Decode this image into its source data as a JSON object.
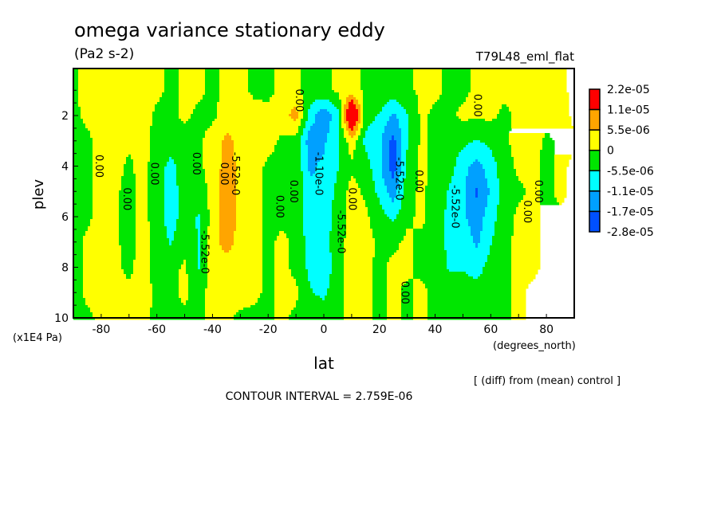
{
  "chart_data": {
    "type": "heatmap",
    "subtype": "filled-contour",
    "title": "omega variance stationary eddy",
    "units": "(Pa2 s-2)",
    "experiment": "T79L48_eml_flat",
    "xlabel": "lat",
    "xunits": "(degrees_north)",
    "ylabel": "plev",
    "yunits": "(x1E4 Pa)",
    "note": "[ (diff) from (mean) control ]",
    "contour_interval": "CONTOUR INTERVAL = 2.759E-06",
    "xlim": [
      -90,
      90
    ],
    "ylim": [
      0.14,
      10
    ],
    "y_inverted": true,
    "x_ticks": [
      -80,
      -60,
      -40,
      -20,
      0,
      20,
      40,
      60,
      80
    ],
    "x_tick_labels": [
      "-80",
      "-60",
      "-40",
      "-20",
      "0",
      "20",
      "40",
      "60",
      "80"
    ],
    "y_ticks": [
      2,
      4,
      6,
      8,
      10
    ],
    "y_tick_labels": [
      "2",
      "4",
      "6",
      "8",
      "10"
    ],
    "legend": {
      "placement": "right",
      "labels": [
        "2.2e-05",
        "1.1e-05",
        "5.5e-06",
        "0",
        "-5.5e-06",
        "-1.1e-05",
        "-1.7e-05",
        "-2.8e-05"
      ],
      "colors": [
        "#ff0000",
        "#ffa500",
        "#ffff00",
        "#00e600",
        "#00ffff",
        "#00a0ff",
        "#0050ff"
      ],
      "thresholds": [
        1.1e-05,
        5.5e-06,
        0,
        -5.5e-06,
        -1.1e-05,
        -1.7e-05
      ]
    },
    "lat": [
      -90,
      -85,
      -80,
      -75,
      -70,
      -65,
      -60,
      -55,
      -50,
      -45,
      -40,
      -35,
      -30,
      -25,
      -20,
      -15,
      -10,
      -5,
      0,
      5,
      10,
      15,
      20,
      25,
      30,
      35,
      40,
      45,
      50,
      55,
      60,
      65,
      70,
      75,
      80,
      85,
      90
    ],
    "plev": [
      1,
      2,
      3,
      4,
      5,
      6,
      7,
      8,
      9,
      10
    ],
    "values": [
      [
        -1e-06,
        2e-06,
        2e-06,
        2e-06,
        2e-06,
        2e-06,
        1e-06,
        -1e-06,
        1e-06,
        1e-06,
        -1e-06,
        1e-06,
        1e-06,
        -1e-06,
        -1e-06,
        1e-06,
        1e-06,
        -2e-06,
        -1e-06,
        1e-06,
        2e-06,
        -1e-06,
        -1e-06,
        -2e-06,
        -1e-06,
        1e-06,
        1e-06,
        -1e-06,
        -1e-06,
        1e-06,
        1e-06,
        1e-06,
        1e-06,
        2e-06,
        2e-06,
        1e-06,
        -1e-06
      ],
      [
        -1e-06,
        1e-06,
        2e-06,
        2e-06,
        2e-06,
        2e-06,
        -1e-06,
        -1e-06,
        1e-06,
        -1e-06,
        -1e-06,
        2e-06,
        3e-06,
        2e-06,
        1e-06,
        3e-06,
        8e-06,
        -8e-06,
        -1.5e-05,
        -8e-06,
        2.5e-05,
        -3e-06,
        -6e-06,
        -1.2e-05,
        -6e-06,
        1e-06,
        -1e-06,
        -1e-06,
        1e-06,
        1e-06,
        1e-06,
        -1e-06,
        1e-06,
        2e-06,
        2e-06,
        2e-06,
        -1e-06
      ],
      [
        -2e-06,
        -1e-06,
        2e-06,
        2e-06,
        1e-06,
        2e-06,
        -2e-06,
        -3e-06,
        -2e-06,
        -1e-06,
        2e-06,
        7e-06,
        4e-06,
        3e-06,
        2e-06,
        -1e-06,
        -2e-06,
        -1.4e-05,
        -1.2e-05,
        -6e-06,
        3e-06,
        -7e-06,
        -1e-05,
        -1.9e-05,
        -6e-06,
        1e-06,
        -1e-06,
        -2e-06,
        -4e-06,
        -6e-06,
        -4e-06,
        -1e-06,
        2e-06,
        2e-06,
        -1e-06,
        1e-06,
        1e-06
      ],
      [
        -2e-06,
        -1e-06,
        2e-06,
        2e-06,
        -1e-06,
        2e-06,
        -3e-06,
        -7e-06,
        -3e-06,
        -1e-06,
        2e-06,
        8e-06,
        4e-06,
        2e-06,
        -1e-06,
        -2e-06,
        -1e-06,
        -1.2e-05,
        -1e-05,
        -6e-06,
        -1e-06,
        -3e-06,
        -1e-05,
        -2e-05,
        -4e-06,
        1e-06,
        -1e-06,
        -3e-06,
        -9e-06,
        -1.3e-05,
        -8e-06,
        -2e-06,
        1e-06,
        1e-06,
        -1e-06,
        1e-06,
        -1e-06
      ],
      [
        -2e-06,
        -1e-06,
        2e-06,
        1e-06,
        -2e-06,
        2e-06,
        -3e-06,
        -8e-06,
        -3e-06,
        -3e-06,
        2e-06,
        9e-06,
        4e-06,
        2e-06,
        -1e-06,
        -2e-06,
        -1e-06,
        -1e-05,
        -9e-06,
        -4e-06,
        2e-06,
        -1e-06,
        -7e-06,
        -1.4e-05,
        -2e-06,
        1e-06,
        -2e-06,
        -6e-06,
        -1e-05,
        -1.8e-05,
        -1e-05,
        -3e-06,
        -1e-06,
        1e-06,
        -1e-06,
        1e-06,
        -1e-06
      ],
      [
        -2e-06,
        -1e-06,
        2e-06,
        1e-06,
        -2e-06,
        2e-06,
        -3e-06,
        -8e-06,
        -3e-06,
        -6e-06,
        2e-06,
        1e-05,
        4e-06,
        2e-06,
        -1e-06,
        -1e-06,
        -1e-06,
        -1e-05,
        -9e-06,
        -3e-06,
        2e-06,
        1e-06,
        -3e-06,
        -7e-06,
        -1e-06,
        1e-06,
        -2e-06,
        -7e-06,
        -1e-05,
        -1.4e-05,
        -8e-06,
        -2e-06,
        1e-06,
        1e-06,
        -1e-06,
        -1e-06,
        -1e-06
      ],
      [
        -2e-06,
        1e-06,
        2e-06,
        1e-06,
        -2e-06,
        2e-06,
        -2e-06,
        -6e-06,
        -2e-06,
        -6e-06,
        3e-06,
        8e-06,
        3e-06,
        2e-06,
        -1e-06,
        1e-06,
        -1e-06,
        -8e-06,
        -8e-06,
        -2e-06,
        2e-06,
        2e-06,
        -1e-06,
        -1e-06,
        1e-06,
        -1e-06,
        -2e-06,
        -7e-06,
        -8e-06,
        -1.2e-05,
        -6e-06,
        -1e-06,
        1e-06,
        1e-06,
        -1e-06,
        -1e-06,
        -1e-06
      ],
      [
        -2e-06,
        1e-06,
        2e-06,
        1e-06,
        -1e-06,
        2e-06,
        -2e-06,
        -2e-06,
        1e-06,
        -6e-06,
        3e-06,
        3e-06,
        3e-06,
        2e-06,
        -1e-06,
        1e-06,
        -1e-06,
        -7e-06,
        -1e-05,
        -2e-06,
        2e-06,
        1e-06,
        -1e-06,
        1e-06,
        1e-06,
        -1e-06,
        -2e-06,
        -6e-06,
        -6e-06,
        -8e-06,
        -3e-06,
        -1e-06,
        1e-06,
        1e-06,
        -1e-06,
        -1e-06,
        -1e-06
      ],
      [
        -2e-06,
        1e-06,
        2e-06,
        1e-06,
        1e-06,
        2e-06,
        -1e-06,
        -1e-06,
        1e-06,
        -2e-06,
        2e-06,
        2e-06,
        2e-06,
        1e-06,
        -1e-06,
        1e-06,
        1e-06,
        -5e-06,
        -7e-06,
        -1e-06,
        1e-06,
        1e-06,
        -1e-06,
        1e-06,
        -1e-06,
        1e-06,
        -1e-06,
        -3e-06,
        -2e-06,
        -3e-06,
        -1e-06,
        -1e-06,
        1e-06,
        -1e-06,
        -1e-06,
        -1e-06,
        -1e-06
      ],
      [
        -1e-06,
        -1e-06,
        1e-06,
        1e-06,
        1e-06,
        1e-06,
        -1e-06,
        -1e-06,
        -1e-06,
        -1e-06,
        1e-06,
        1e-06,
        -1e-06,
        -1e-06,
        -1e-06,
        1e-06,
        -1e-06,
        -1e-06,
        -2e-06,
        -1e-06,
        1e-06,
        1e-06,
        -1e-06,
        1e-06,
        -1e-06,
        1e-06,
        -1e-06,
        -1e-06,
        -1e-06,
        -1e-06,
        -1e-06,
        -1e-06,
        1e-06,
        -1e-06,
        -1e-06,
        -1e-06,
        -1e-06
      ]
    ],
    "contour_labels": [
      {
        "text": "0.00",
        "lat": -10,
        "plev": 1.4
      },
      {
        "text": "0.00",
        "lat": -82,
        "plev": 4.0
      },
      {
        "text": "0.00",
        "lat": -72,
        "plev": 5.3
      },
      {
        "text": "0.00",
        "lat": -62,
        "plev": 4.3
      },
      {
        "text": "0.00",
        "lat": -47,
        "plev": 3.9
      },
      {
        "text": "-5.52e-0",
        "lat": -44,
        "plev": 7.4
      },
      {
        "text": "0.00",
        "lat": -37,
        "plev": 4.3
      },
      {
        "text": "-5.52e-0",
        "lat": -33,
        "plev": 4.3
      },
      {
        "text": "0.00",
        "lat": -17,
        "plev": 5.6
      },
      {
        "text": "0.00",
        "lat": -12,
        "plev": 5.0
      },
      {
        "text": "-1.10e-0",
        "lat": -3,
        "plev": 4.3
      },
      {
        "text": "-5.52e-0",
        "lat": 5,
        "plev": 6.6
      },
      {
        "text": "0.00",
        "lat": 9,
        "plev": 5.3
      },
      {
        "text": "-5.52e-0",
        "lat": 26,
        "plev": 4.5
      },
      {
        "text": "0.00",
        "lat": 33,
        "plev": 4.6
      },
      {
        "text": "0.00",
        "lat": 28,
        "plev": 9.0
      },
      {
        "text": "-5.52e-0",
        "lat": 46,
        "plev": 5.6
      },
      {
        "text": "0.00",
        "lat": 54,
        "plev": 1.6
      },
      {
        "text": "0.00",
        "lat": 72,
        "plev": 5.8
      },
      {
        "text": "0.00",
        "lat": 76,
        "plev": 5.0
      }
    ]
  }
}
